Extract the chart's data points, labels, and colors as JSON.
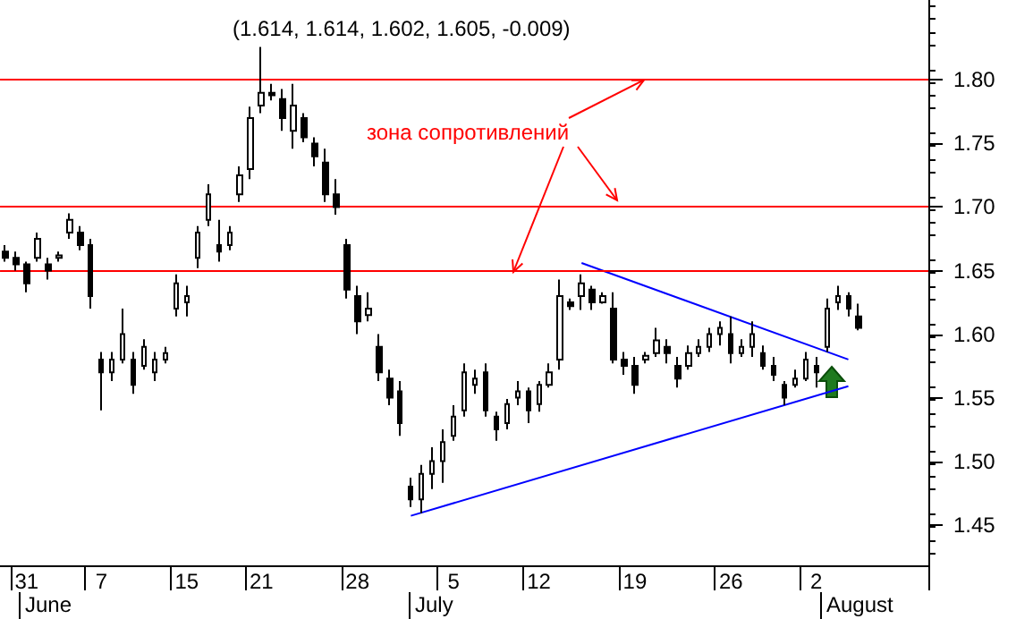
{
  "chart_data": {
    "type": "candlestick",
    "title": "(1.614, 1.614, 1.602, 1.605, -0.009)",
    "categories": [
      null,
      null,
      "31",
      null,
      null,
      null,
      null,
      null,
      null,
      "7",
      null,
      null,
      null,
      null,
      null,
      null,
      null,
      "15",
      null,
      null,
      null,
      null,
      null,
      null,
      "21",
      null,
      null,
      null,
      null,
      null,
      null,
      null,
      null,
      "28",
      null,
      null,
      null,
      null,
      null,
      null,
      null,
      null,
      "5",
      null,
      null,
      null,
      null,
      null,
      null,
      null,
      "12",
      null,
      null,
      null,
      null,
      null,
      null,
      null,
      null,
      "19",
      null,
      null,
      null,
      null,
      null,
      null,
      null,
      null,
      "26",
      null,
      null,
      null,
      null,
      null,
      null,
      null,
      "2",
      null,
      null,
      null,
      null,
      null,
      null,
      null,
      null,
      null,
      null
    ],
    "ohlc": [
      [
        1.665,
        1.67,
        1.657,
        1.66
      ],
      [
        1.66,
        1.665,
        1.65,
        1.655
      ],
      [
        1.655,
        1.657,
        1.633,
        1.64
      ],
      [
        1.66,
        1.68,
        1.657,
        1.675
      ],
      [
        1.655,
        1.66,
        1.643,
        1.65
      ],
      [
        1.66,
        1.665,
        1.657,
        1.662
      ],
      [
        1.68,
        1.695,
        1.675,
        1.69
      ],
      [
        1.68,
        1.685,
        1.666,
        1.67
      ],
      [
        1.67,
        1.675,
        1.62,
        1.63
      ],
      [
        1.58,
        1.586,
        1.54,
        1.57
      ],
      [
        1.57,
        1.586,
        1.563,
        1.58
      ],
      [
        1.58,
        1.62,
        1.577,
        1.6
      ],
      [
        1.58,
        1.586,
        1.553,
        1.56
      ],
      [
        1.575,
        1.596,
        1.572,
        1.59
      ],
      [
        1.57,
        1.586,
        1.563,
        1.58
      ],
      [
        1.58,
        1.59,
        1.577,
        1.585
      ],
      [
        1.62,
        1.647,
        1.614,
        1.64
      ],
      [
        1.625,
        1.638,
        1.614,
        1.63
      ],
      [
        1.66,
        1.685,
        1.652,
        1.68
      ],
      [
        1.69,
        1.718,
        1.685,
        1.71
      ],
      [
        1.67,
        1.69,
        1.657,
        1.665
      ],
      [
        1.67,
        1.685,
        1.666,
        1.68
      ],
      [
        1.71,
        1.732,
        1.704,
        1.725
      ],
      [
        1.73,
        1.779,
        1.722,
        1.77
      ],
      [
        1.78,
        1.826,
        1.774,
        1.79
      ],
      [
        1.79,
        1.797,
        1.784,
        1.788
      ],
      [
        1.785,
        1.793,
        1.76,
        1.77
      ],
      [
        1.76,
        1.797,
        1.746,
        1.78
      ],
      [
        1.77,
        1.774,
        1.751,
        1.755
      ],
      [
        1.75,
        1.755,
        1.732,
        1.74
      ],
      [
        1.735,
        1.746,
        1.704,
        1.71
      ],
      [
        1.71,
        1.722,
        1.694,
        1.7
      ],
      [
        1.67,
        1.675,
        1.628,
        1.635
      ],
      [
        1.63,
        1.638,
        1.6,
        1.61
      ],
      [
        1.615,
        1.633,
        1.61,
        1.62
      ],
      [
        1.59,
        1.6,
        1.563,
        1.57
      ],
      [
        1.565,
        1.572,
        1.544,
        1.55
      ],
      [
        1.555,
        1.563,
        1.52,
        1.53
      ],
      [
        1.48,
        1.487,
        1.464,
        1.47
      ],
      [
        1.47,
        1.497,
        1.459,
        1.49
      ],
      [
        1.49,
        1.511,
        1.478,
        1.5
      ],
      [
        1.5,
        1.525,
        1.483,
        1.515
      ],
      [
        1.52,
        1.544,
        1.516,
        1.535
      ],
      [
        1.54,
        1.577,
        1.535,
        1.57
      ],
      [
        1.56,
        1.572,
        1.553,
        1.565
      ],
      [
        1.57,
        1.577,
        1.535,
        1.54
      ],
      [
        1.535,
        1.539,
        1.516,
        1.525
      ],
      [
        1.53,
        1.549,
        1.525,
        1.545
      ],
      [
        1.55,
        1.563,
        1.544,
        1.555
      ],
      [
        1.555,
        1.558,
        1.53,
        1.54
      ],
      [
        1.545,
        1.563,
        1.539,
        1.56
      ],
      [
        1.56,
        1.577,
        1.558,
        1.57
      ],
      [
        1.58,
        1.643,
        1.572,
        1.63
      ],
      [
        1.625,
        1.628,
        1.619,
        1.622
      ],
      [
        1.63,
        1.647,
        1.619,
        1.64
      ],
      [
        1.635,
        1.638,
        1.619,
        1.625
      ],
      [
        1.625,
        1.633,
        1.624,
        1.63
      ],
      [
        1.62,
        1.633,
        1.577,
        1.58
      ],
      [
        1.58,
        1.586,
        1.568,
        1.575
      ],
      [
        1.575,
        1.582,
        1.553,
        1.56
      ],
      [
        1.58,
        1.586,
        1.577,
        1.583
      ],
      [
        1.585,
        1.605,
        1.582,
        1.595
      ],
      [
        1.59,
        1.596,
        1.577,
        1.585
      ],
      [
        1.575,
        1.582,
        1.558,
        1.565
      ],
      [
        1.575,
        1.591,
        1.572,
        1.585
      ],
      [
        1.585,
        1.596,
        1.582,
        1.59
      ],
      [
        1.59,
        1.605,
        1.586,
        1.6
      ],
      [
        1.6,
        1.61,
        1.591,
        1.605
      ],
      [
        1.6,
        1.614,
        1.577,
        1.585
      ],
      [
        1.585,
        1.596,
        1.582,
        1.59
      ],
      [
        1.59,
        1.61,
        1.582,
        1.6
      ],
      [
        1.585,
        1.591,
        1.572,
        1.575
      ],
      [
        1.575,
        1.582,
        1.563,
        1.568
      ],
      [
        1.56,
        1.563,
        1.544,
        1.55
      ],
      [
        1.56,
        1.572,
        1.558,
        1.565
      ],
      [
        1.565,
        1.586,
        1.563,
        1.58
      ],
      [
        1.575,
        1.582,
        1.558,
        1.57
      ],
      [
        1.59,
        1.628,
        1.586,
        1.62
      ],
      [
        1.625,
        1.638,
        1.619,
        1.63
      ],
      [
        1.63,
        1.633,
        1.614,
        1.62
      ],
      [
        1.614,
        1.624,
        1.603,
        1.605
      ],
      null,
      null,
      null,
      null,
      null,
      null
    ],
    "color": "#000000",
    "series": [
      {
        "type": "line",
        "color": "#0000ff",
        "values": [
          null,
          null,
          null,
          null,
          null,
          null,
          null,
          null,
          null,
          null,
          null,
          null,
          null,
          null,
          null,
          null,
          null,
          null,
          null,
          null,
          null,
          null,
          null,
          null,
          null,
          null,
          null,
          null,
          null,
          null,
          null,
          null,
          null,
          null,
          null,
          null,
          null,
          null,
          1.457,
          null,
          null,
          null,
          null,
          null,
          null,
          null,
          null,
          null,
          null,
          null,
          null,
          null,
          null,
          null,
          null,
          null,
          null,
          null,
          null,
          null,
          null,
          null,
          null,
          null,
          null,
          null,
          null,
          null,
          null,
          null,
          null,
          null,
          null,
          null,
          null,
          null,
          null,
          null,
          null,
          1.559,
          null,
          null,
          null,
          null,
          null,
          null,
          null
        ]
      },
      {
        "type": "line",
        "color": "#0000ff",
        "values": [
          null,
          null,
          null,
          null,
          null,
          null,
          null,
          null,
          null,
          null,
          null,
          null,
          null,
          null,
          null,
          null,
          null,
          null,
          null,
          null,
          null,
          null,
          null,
          null,
          null,
          null,
          null,
          null,
          null,
          null,
          null,
          null,
          null,
          null,
          null,
          null,
          null,
          null,
          null,
          null,
          null,
          null,
          null,
          null,
          null,
          null,
          null,
          null,
          null,
          null,
          null,
          null,
          null,
          null,
          1.656,
          null,
          null,
          null,
          null,
          null,
          null,
          null,
          null,
          null,
          null,
          null,
          null,
          null,
          null,
          null,
          null,
          null,
          null,
          null,
          null,
          null,
          null,
          null,
          null,
          1.58,
          null,
          null,
          null,
          null,
          null,
          null,
          null
        ]
      }
    ],
    "ylim": [
      1.418,
      1.863
    ],
    "yticks": [
      1.45,
      {
        "value": 1.5,
        "label": "1.50"
      },
      1.55,
      {
        "value": 1.6,
        "label": "1.60"
      },
      1.65,
      {
        "value": 1.7,
        "label": "1.70"
      },
      1.75,
      {
        "value": 1.8,
        "label": "1.80"
      }
    ],
    "ref_lines": [
      {
        "axis": "y",
        "value": 1.8,
        "color": "#ff0000"
      },
      {
        "axis": "y",
        "value": 1.7,
        "color": "#ff0000"
      },
      {
        "axis": "y",
        "value": 1.65,
        "color": "#ff0000"
      }
    ],
    "annotations": [
      "June",
      "July",
      "August",
      {
        "text": "зона сопротивлений",
        "y": 1.8
      }
    ],
    "grid": false,
    "marker": "none",
    "line_style": "solid"
  }
}
